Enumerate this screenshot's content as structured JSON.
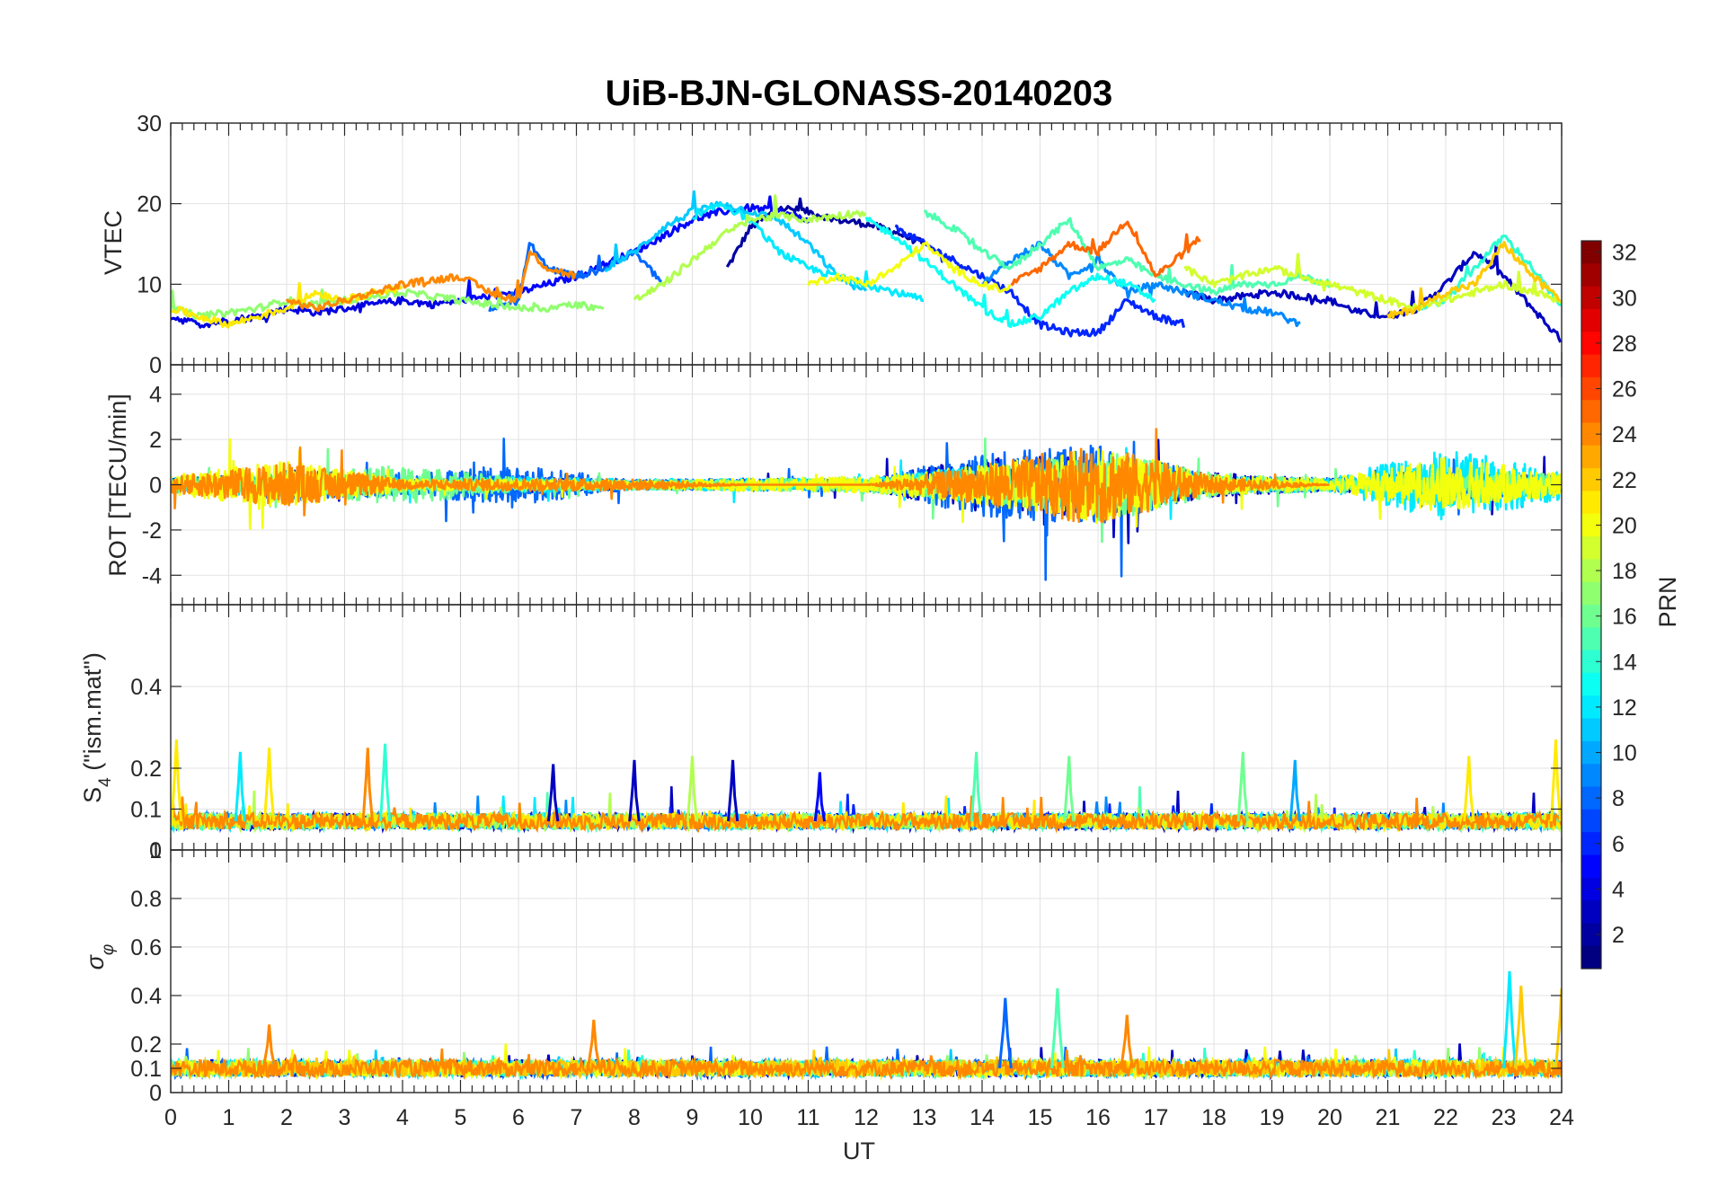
{
  "title": "UiB-BJN-GLONASS-20140203",
  "xlabel": "UT",
  "colorbar": {
    "label": "PRN",
    "ticks": [
      "2",
      "4",
      "6",
      "8",
      "10",
      "12",
      "14",
      "16",
      "18",
      "20",
      "22",
      "24",
      "26",
      "28",
      "30",
      "32"
    ],
    "range": [
      1,
      32
    ],
    "colormap": "jet"
  },
  "panels": {
    "vtec": {
      "ylabel": "VTEC",
      "ylim": [
        0,
        30
      ],
      "ticks": [
        "0",
        "10",
        "20",
        "30"
      ]
    },
    "rot": {
      "ylabel": "ROT [TECU/min]",
      "ylim": [
        -5.3,
        5.3
      ],
      "ticks": [
        "-4",
        "-2",
        "0",
        "2",
        "4"
      ]
    },
    "s4": {
      "ylabel_main": "S",
      "ylabel_sub": "4",
      "ylabel_rest": " (\"ism.mat\")",
      "ylim": [
        0,
        0.6
      ],
      "ticks": [
        "0",
        "0.1",
        "0.2",
        "0.4"
      ]
    },
    "sigma": {
      "ylabel_main": "σ",
      "ylabel_sub": "φ",
      "ylim": [
        0,
        1
      ],
      "ticks": [
        "0",
        "0.1",
        "0.2",
        "0.4",
        "0.6",
        "0.8",
        "1"
      ]
    }
  },
  "xticks": [
    "0",
    "1",
    "2",
    "3",
    "4",
    "5",
    "6",
    "7",
    "8",
    "9",
    "10",
    "11",
    "12",
    "13",
    "14",
    "15",
    "16",
    "17",
    "18",
    "19",
    "20",
    "21",
    "22",
    "23",
    "24"
  ],
  "chart_data": [
    {
      "type": "line",
      "title": "UiB-BJN-GLONASS-20140203",
      "xlabel": "UT",
      "ylabel": "VTEC",
      "xlim": [
        0,
        24
      ],
      "ylim": [
        0,
        30
      ],
      "series": [
        {
          "name": "PRN 2",
          "prn": 2,
          "x": [
            9.6,
            10.0,
            10.5,
            11.0,
            11.5,
            12.0,
            12.5,
            13.0
          ],
          "y": [
            12,
            17,
            19.5,
            19,
            18,
            17.5,
            16.5,
            15
          ]
        },
        {
          "name": "PRN 3",
          "prn": 3,
          "x": [
            17.5,
            18.0,
            18.5,
            19.0,
            19.5,
            20.0,
            20.5,
            21.0,
            21.5,
            22.0,
            22.5,
            23.0,
            23.5,
            24.0
          ],
          "y": [
            9,
            8,
            8.5,
            9,
            8.5,
            8,
            6.5,
            6,
            7,
            10,
            14,
            11,
            7,
            3
          ]
        },
        {
          "name": "PRN 4",
          "prn": 4,
          "x": [
            0,
            0.5,
            1.0,
            1.5,
            2.0,
            2.5,
            3.0,
            3.5,
            4.0,
            4.5,
            5.0
          ],
          "y": [
            6,
            5,
            5.5,
            6,
            7,
            6.5,
            7,
            7.5,
            8,
            7.5,
            8
          ]
        },
        {
          "name": "PRN 5",
          "prn": 5,
          "x": [
            5.0,
            5.5,
            6.0,
            6.5,
            7.0,
            7.5,
            8.0,
            8.5,
            9.0,
            9.5,
            10.0,
            10.5,
            11.0
          ],
          "y": [
            8,
            8.5,
            9,
            10,
            11,
            12.5,
            14,
            16,
            18,
            19,
            19.5,
            19,
            18
          ]
        },
        {
          "name": "PRN 6",
          "prn": 6,
          "x": [
            12.5,
            13.0,
            13.5,
            14.0,
            14.5,
            15.0,
            15.5,
            16.0,
            16.5,
            17.0,
            17.5
          ],
          "y": [
            17,
            15,
            13,
            11,
            9,
            5,
            4,
            4,
            8,
            6,
            5
          ]
        },
        {
          "name": "PRN 8",
          "prn": 8,
          "x": [
            5.5,
            6.0,
            6.2,
            6.5,
            7.0,
            7.5,
            8.0,
            8.5
          ],
          "y": [
            7,
            8,
            15,
            12,
            11,
            12,
            14,
            10
          ]
        },
        {
          "name": "PRN 9",
          "prn": 9,
          "x": [
            14.0,
            14.5,
            15.0,
            15.5,
            16.0,
            16.5,
            17.0,
            17.5,
            18.0,
            18.5,
            19.0,
            19.5
          ],
          "y": [
            10,
            13,
            15,
            11,
            13,
            9,
            10,
            9,
            8,
            7,
            6.5,
            5
          ]
        },
        {
          "name": "PRN 11",
          "prn": 11,
          "x": [
            7.5,
            8.0,
            8.5,
            9.0,
            9.5,
            10.0,
            10.5,
            11.0,
            11.5,
            12.0
          ],
          "y": [
            12,
            14,
            17,
            19,
            20,
            19,
            18,
            15,
            11,
            9
          ]
        },
        {
          "name": "PRN 12",
          "prn": 12,
          "x": [
            9.0,
            9.5,
            10.0,
            10.5,
            11.0,
            11.5,
            12.0,
            12.5,
            13.0
          ],
          "y": [
            18,
            20,
            18,
            14,
            12,
            11,
            10,
            9,
            8
          ]
        },
        {
          "name": "PRN 13",
          "prn": 13,
          "x": [
            12.0,
            12.5,
            13.0,
            13.5,
            14.0,
            14.5,
            15.0,
            15.5,
            16.0,
            16.5,
            17.0
          ],
          "y": [
            18,
            16,
            13,
            10,
            7,
            5,
            6,
            9,
            11,
            10,
            8
          ]
        },
        {
          "name": "PRN 14",
          "prn": 14,
          "x": [
            21.5,
            22.0,
            22.5,
            23.0,
            23.5,
            24.0
          ],
          "y": [
            7,
            8,
            12,
            16,
            12,
            7
          ]
        },
        {
          "name": "PRN 15",
          "prn": 15,
          "x": [
            13.0,
            13.5,
            14.0,
            14.5,
            15.0,
            15.5,
            16.0,
            16.5,
            17.0,
            17.5,
            18.0,
            18.5,
            19.0,
            19.5,
            20.0
          ],
          "y": [
            19,
            17,
            14,
            12,
            15,
            18,
            12,
            13,
            11,
            10,
            9,
            10,
            10,
            11,
            10
          ]
        },
        {
          "name": "PRN 17",
          "prn": 17,
          "x": [
            0,
            0.5,
            1.0,
            1.5,
            2.0,
            2.5,
            3.0,
            3.5,
            4.0,
            4.5,
            5.0,
            5.5,
            6.0,
            6.5,
            7.0,
            7.5
          ],
          "y": [
            7,
            6,
            6.5,
            7,
            8,
            7.5,
            8,
            8.5,
            9,
            8.5,
            8,
            7.5,
            7,
            7,
            7.5,
            7
          ]
        },
        {
          "name": "PRN 18",
          "prn": 18,
          "x": [
            8.0,
            8.5,
            9.0,
            9.5,
            10.0,
            10.5,
            11.0,
            11.5,
            12.0
          ],
          "y": [
            8,
            10,
            13,
            16,
            18,
            18.5,
            18,
            18.5,
            19
          ]
        },
        {
          "name": "PRN 19",
          "prn": 19,
          "x": [
            17.5,
            18.0,
            18.5,
            19.0,
            19.5,
            20.0,
            20.5,
            21.0,
            21.5,
            22.0,
            22.5,
            23.0,
            23.5,
            24.0
          ],
          "y": [
            12,
            10,
            11,
            12,
            11,
            10,
            9,
            8,
            7,
            8,
            9,
            10,
            9,
            8
          ]
        },
        {
          "name": "PRN 20",
          "prn": 20,
          "x": [
            11.0,
            11.5,
            12.0,
            12.5,
            13.0,
            13.5,
            14.0,
            14.5
          ],
          "y": [
            10,
            11,
            10,
            12,
            15,
            12,
            10,
            9
          ]
        },
        {
          "name": "PRN 21",
          "prn": 21,
          "x": [
            0,
            0.5,
            1.0,
            1.5,
            2.0,
            2.5,
            3.0,
            3.5,
            4.0
          ],
          "y": [
            7,
            6,
            5,
            6,
            7,
            9,
            8,
            9,
            9.5
          ]
        },
        {
          "name": "PRN 22",
          "prn": 22,
          "x": [
            21.0,
            21.5,
            22.0,
            22.5,
            23.0,
            23.5,
            24.0
          ],
          "y": [
            6,
            7,
            9,
            10,
            15,
            11,
            8
          ]
        },
        {
          "name": "PRN 24",
          "prn": 24,
          "x": [
            2.0,
            2.5,
            3.0,
            3.5,
            4.0,
            4.5,
            5.0,
            5.5,
            6.0,
            6.2,
            6.5,
            7.0
          ],
          "y": [
            8,
            7,
            8,
            9,
            10,
            10.5,
            11,
            9,
            8,
            14,
            12,
            11
          ]
        },
        {
          "name": "PRN 25",
          "prn": 25,
          "x": [
            14.5,
            15.0,
            15.5,
            16.0,
            16.5,
            17.0,
            17.5,
            17.8
          ],
          "y": [
            10,
            12,
            15,
            14,
            18,
            11,
            14,
            16
          ]
        }
      ]
    },
    {
      "type": "line",
      "ylabel": "ROT [TECU/min]",
      "xlim": [
        0,
        24
      ],
      "ylim": [
        -5.3,
        5.3
      ],
      "description_series": "high-rate fluctuations around 0 for all PRNs",
      "series": [
        {
          "name": "PRN 3",
          "prn": 3,
          "x": [
            0,
            2,
            4,
            6,
            8,
            10,
            12,
            14,
            16,
            18,
            20,
            22,
            24
          ],
          "envelope": [
            0.8,
            1.0,
            0.6,
            1.0,
            0.5,
            0.6,
            0.7,
            3.5,
            4.0,
            1.5,
            0.8,
            1.5,
            1.2
          ]
        },
        {
          "name": "PRN 8",
          "prn": 8,
          "x": [
            0,
            2,
            4,
            6,
            8,
            10,
            12,
            14,
            16,
            18,
            20,
            22,
            24
          ],
          "envelope": [
            0.7,
            1.8,
            1.5,
            2.5,
            0.6,
            0.8,
            0.6,
            4.0,
            5.0,
            1.2,
            0.8,
            2.0,
            1.0
          ]
        },
        {
          "name": "PRN 12",
          "prn": 12,
          "x": [
            0,
            2,
            4,
            6,
            8,
            10,
            12,
            14,
            16,
            18,
            20,
            22,
            24
          ],
          "envelope": [
            1.0,
            1.5,
            0.8,
            1.0,
            0.7,
            0.8,
            0.7,
            2.5,
            3.0,
            1.0,
            0.9,
            4.5,
            2.0
          ]
        },
        {
          "name": "PRN 16",
          "prn": 16,
          "x": [
            0,
            2,
            4,
            6,
            8,
            10,
            12,
            14,
            16,
            18,
            20,
            22,
            24
          ],
          "envelope": [
            0.8,
            1.2,
            2.5,
            0.9,
            0.6,
            0.7,
            1.0,
            2.0,
            4.5,
            1.5,
            0.8,
            1.0,
            1.5
          ]
        },
        {
          "name": "PRN 20",
          "prn": 20,
          "x": [
            0,
            2,
            4,
            6,
            8,
            10,
            12,
            14,
            16,
            18,
            20,
            22,
            24
          ],
          "envelope": [
            1.2,
            3.0,
            0.8,
            0.6,
            0.5,
            0.8,
            1.0,
            2.5,
            5.0,
            1.2,
            0.8,
            3.5,
            1.5
          ]
        },
        {
          "name": "PRN 24",
          "prn": 24,
          "x": [
            0,
            2,
            4,
            6,
            8,
            10,
            12,
            14,
            16,
            18,
            20,
            22,
            24
          ],
          "envelope": [
            1.0,
            2.8,
            0.6,
            0.8,
            0.7,
            0.0,
            0.0,
            2.5,
            5.2,
            1.0,
            0.0,
            0.0,
            0.0
          ]
        }
      ]
    },
    {
      "type": "line",
      "ylabel": "S4 (\"ism.mat\")",
      "xlim": [
        0,
        24
      ],
      "ylim": [
        0,
        0.6
      ],
      "baseline": 0.07,
      "peaks": [
        {
          "prn": 21,
          "x": 0.1,
          "y": 0.27
        },
        {
          "prn": 12,
          "x": 1.2,
          "y": 0.24
        },
        {
          "prn": 21,
          "x": 1.7,
          "y": 0.25
        },
        {
          "prn": 24,
          "x": 3.4,
          "y": 0.25
        },
        {
          "prn": 14,
          "x": 3.7,
          "y": 0.26
        },
        {
          "prn": 3,
          "x": 6.6,
          "y": 0.21
        },
        {
          "prn": 3,
          "x": 8.0,
          "y": 0.22
        },
        {
          "prn": 18,
          "x": 9.0,
          "y": 0.23
        },
        {
          "prn": 3,
          "x": 9.7,
          "y": 0.22
        },
        {
          "prn": 5,
          "x": 11.2,
          "y": 0.19
        },
        {
          "prn": 15,
          "x": 13.9,
          "y": 0.24
        },
        {
          "prn": 16,
          "x": 15.5,
          "y": 0.23
        },
        {
          "prn": 16,
          "x": 18.5,
          "y": 0.24
        },
        {
          "prn": 10,
          "x": 19.4,
          "y": 0.22
        },
        {
          "prn": 21,
          "x": 22.4,
          "y": 0.23
        },
        {
          "prn": 21,
          "x": 23.9,
          "y": 0.27
        }
      ]
    },
    {
      "type": "line",
      "ylabel": "σφ",
      "xlim": [
        0,
        24
      ],
      "ylim": [
        0,
        1
      ],
      "baseline": 0.1,
      "peaks": [
        {
          "prn": 24,
          "x": 1.7,
          "y": 0.28
        },
        {
          "prn": 24,
          "x": 7.3,
          "y": 0.3
        },
        {
          "prn": 8,
          "x": 14.4,
          "y": 0.39
        },
        {
          "prn": 15,
          "x": 15.3,
          "y": 0.43
        },
        {
          "prn": 24,
          "x": 16.5,
          "y": 0.32
        },
        {
          "prn": 12,
          "x": 23.1,
          "y": 0.5
        },
        {
          "prn": 22,
          "x": 23.3,
          "y": 0.44
        },
        {
          "prn": 22,
          "x": 24.0,
          "y": 0.43
        }
      ]
    }
  ]
}
